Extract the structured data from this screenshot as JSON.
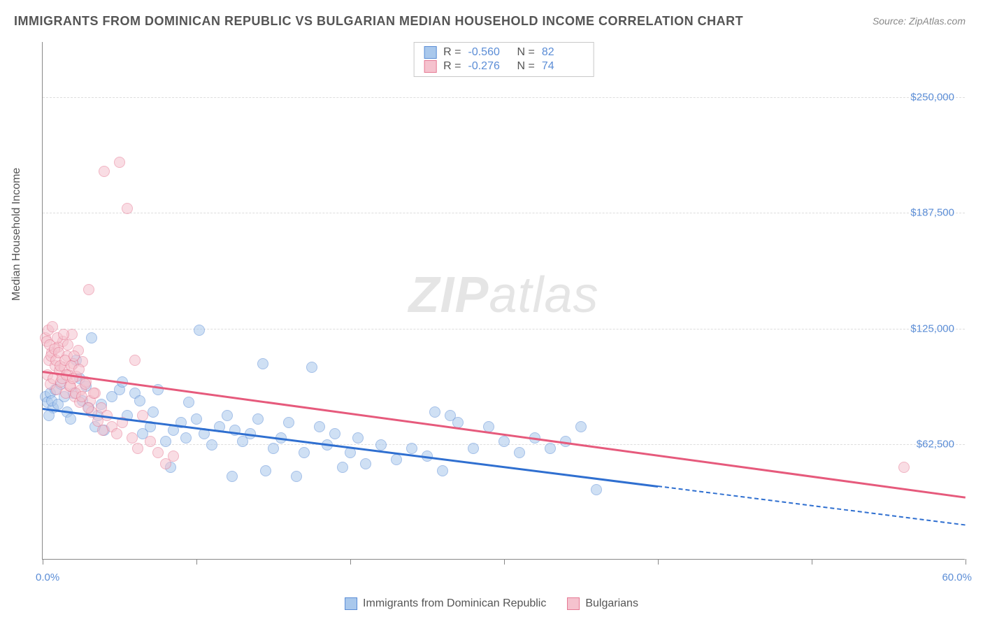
{
  "title": "IMMIGRANTS FROM DOMINICAN REPUBLIC VS BULGARIAN MEDIAN HOUSEHOLD INCOME CORRELATION CHART",
  "source": "Source: ZipAtlas.com",
  "y_axis_label": "Median Household Income",
  "watermark_bold": "ZIP",
  "watermark_thin": "atlas",
  "x_min_label": "0.0%",
  "x_max_label": "60.0%",
  "chart": {
    "type": "scatter",
    "xlim": [
      0,
      60
    ],
    "ylim": [
      0,
      280000
    ],
    "y_ticks": [
      62500,
      125000,
      187500,
      250000
    ],
    "y_tick_labels": [
      "$62,500",
      "$125,000",
      "$187,500",
      "$250,000"
    ],
    "x_ticks": [
      0,
      10,
      20,
      30,
      40,
      50,
      60
    ],
    "background_color": "#ffffff",
    "grid_color": "#dddddd",
    "axis_color": "#888888",
    "tick_label_color": "#5b8dd6",
    "marker_radius": 8,
    "marker_opacity": 0.55,
    "series": [
      {
        "name": "Immigrants from Dominican Republic",
        "color_fill": "#a9c8ec",
        "color_stroke": "#5b8dd6",
        "line_color": "#2f6fd0",
        "R": "-0.560",
        "N": "82",
        "regression": {
          "x1": 0,
          "y1": 82000,
          "x2": 40,
          "y2": 40000,
          "dash_to_x": 60,
          "dash_to_y": 19000
        },
        "points": [
          [
            0.2,
            88000
          ],
          [
            0.3,
            85000
          ],
          [
            0.5,
            90000
          ],
          [
            0.7,
            82000
          ],
          [
            0.8,
            92000
          ],
          [
            0.4,
            78000
          ],
          [
            0.6,
            86000
          ],
          [
            1.0,
            84000
          ],
          [
            1.2,
            95000
          ],
          [
            1.4,
            88000
          ],
          [
            1.6,
            80000
          ],
          [
            1.8,
            76000
          ],
          [
            2.0,
            90000
          ],
          [
            2.2,
            108000
          ],
          [
            2.4,
            98000
          ],
          [
            2.6,
            86000
          ],
          [
            2.8,
            94000
          ],
          [
            3.0,
            82000
          ],
          [
            3.2,
            120000
          ],
          [
            3.4,
            72000
          ],
          [
            3.6,
            78000
          ],
          [
            3.8,
            84000
          ],
          [
            4.0,
            70000
          ],
          [
            4.5,
            88000
          ],
          [
            5.0,
            92000
          ],
          [
            5.2,
            96000
          ],
          [
            5.5,
            78000
          ],
          [
            6.0,
            90000
          ],
          [
            6.3,
            86000
          ],
          [
            6.5,
            68000
          ],
          [
            7.0,
            72000
          ],
          [
            7.2,
            80000
          ],
          [
            7.5,
            92000
          ],
          [
            8.0,
            64000
          ],
          [
            8.3,
            50000
          ],
          [
            8.5,
            70000
          ],
          [
            9.0,
            74000
          ],
          [
            9.3,
            66000
          ],
          [
            9.5,
            85000
          ],
          [
            10.0,
            76000
          ],
          [
            10.2,
            124000
          ],
          [
            10.5,
            68000
          ],
          [
            11.0,
            62000
          ],
          [
            11.5,
            72000
          ],
          [
            12.0,
            78000
          ],
          [
            12.3,
            45000
          ],
          [
            12.5,
            70000
          ],
          [
            13.0,
            64000
          ],
          [
            13.5,
            68000
          ],
          [
            14.0,
            76000
          ],
          [
            14.3,
            106000
          ],
          [
            14.5,
            48000
          ],
          [
            15.0,
            60000
          ],
          [
            15.5,
            66000
          ],
          [
            16.0,
            74000
          ],
          [
            16.5,
            45000
          ],
          [
            17.0,
            58000
          ],
          [
            17.5,
            104000
          ],
          [
            18.0,
            72000
          ],
          [
            18.5,
            62000
          ],
          [
            19.0,
            68000
          ],
          [
            19.5,
            50000
          ],
          [
            20.0,
            58000
          ],
          [
            20.5,
            66000
          ],
          [
            21.0,
            52000
          ],
          [
            22.0,
            62000
          ],
          [
            23.0,
            54000
          ],
          [
            24.0,
            60000
          ],
          [
            25.0,
            56000
          ],
          [
            25.5,
            80000
          ],
          [
            26.0,
            48000
          ],
          [
            26.5,
            78000
          ],
          [
            27.0,
            74000
          ],
          [
            28.0,
            60000
          ],
          [
            29.0,
            72000
          ],
          [
            30.0,
            64000
          ],
          [
            31.0,
            58000
          ],
          [
            32.0,
            66000
          ],
          [
            33.0,
            60000
          ],
          [
            34.0,
            64000
          ],
          [
            35.0,
            72000
          ],
          [
            36.0,
            38000
          ]
        ]
      },
      {
        "name": "Bulgarians",
        "color_fill": "#f5c2ce",
        "color_stroke": "#e67a94",
        "line_color": "#e65a7c",
        "R": "-0.276",
        "N": "74",
        "regression": {
          "x1": 0,
          "y1": 102000,
          "x2": 60,
          "y2": 34000
        },
        "points": [
          [
            0.3,
            100000
          ],
          [
            0.4,
            108000
          ],
          [
            0.5,
            95000
          ],
          [
            0.6,
            112000
          ],
          [
            0.7,
            98000
          ],
          [
            0.8,
            105000
          ],
          [
            0.9,
            92000
          ],
          [
            1.0,
            115000
          ],
          [
            1.1,
            102000
          ],
          [
            1.2,
            96000
          ],
          [
            1.3,
            118000
          ],
          [
            1.4,
            104000
          ],
          [
            1.5,
            90000
          ],
          [
            1.6,
            110000
          ],
          [
            1.7,
            100000
          ],
          [
            1.8,
            94000
          ],
          [
            1.9,
            122000
          ],
          [
            2.0,
            106000
          ],
          [
            2.1,
            88000
          ],
          [
            2.2,
            99000
          ],
          [
            2.3,
            113000
          ],
          [
            2.4,
            85000
          ],
          [
            2.5,
            92000
          ],
          [
            2.6,
            107000
          ],
          [
            2.8,
            96000
          ],
          [
            3.0,
            146000
          ],
          [
            3.1,
            86000
          ],
          [
            3.2,
            80000
          ],
          [
            3.4,
            90000
          ],
          [
            3.6,
            75000
          ],
          [
            3.8,
            82000
          ],
          [
            4.0,
            210000
          ],
          [
            4.2,
            78000
          ],
          [
            4.5,
            72000
          ],
          [
            4.8,
            68000
          ],
          [
            5.0,
            215000
          ],
          [
            5.2,
            74000
          ],
          [
            5.5,
            190000
          ],
          [
            5.8,
            66000
          ],
          [
            6.0,
            108000
          ],
          [
            6.2,
            60000
          ],
          [
            6.5,
            78000
          ],
          [
            7.0,
            64000
          ],
          [
            7.5,
            58000
          ],
          [
            8.0,
            52000
          ],
          [
            8.5,
            56000
          ],
          [
            56.0,
            50000
          ],
          [
            0.2,
            120000
          ],
          [
            0.25,
            118000
          ],
          [
            0.35,
            124000
          ],
          [
            0.45,
            116000
          ],
          [
            0.55,
            110000
          ],
          [
            0.65,
            126000
          ],
          [
            0.75,
            114000
          ],
          [
            0.85,
            108000
          ],
          [
            0.95,
            120000
          ],
          [
            1.05,
            112000
          ],
          [
            1.15,
            105000
          ],
          [
            1.25,
            98000
          ],
          [
            1.35,
            122000
          ],
          [
            1.45,
            108000
          ],
          [
            1.55,
            100000
          ],
          [
            1.65,
            116000
          ],
          [
            1.75,
            94000
          ],
          [
            1.85,
            105000
          ],
          [
            1.95,
            98000
          ],
          [
            2.05,
            110000
          ],
          [
            2.15,
            90000
          ],
          [
            2.35,
            103000
          ],
          [
            2.55,
            88000
          ],
          [
            2.75,
            95000
          ],
          [
            2.95,
            82000
          ],
          [
            3.3,
            90000
          ],
          [
            3.9,
            70000
          ]
        ]
      }
    ]
  }
}
